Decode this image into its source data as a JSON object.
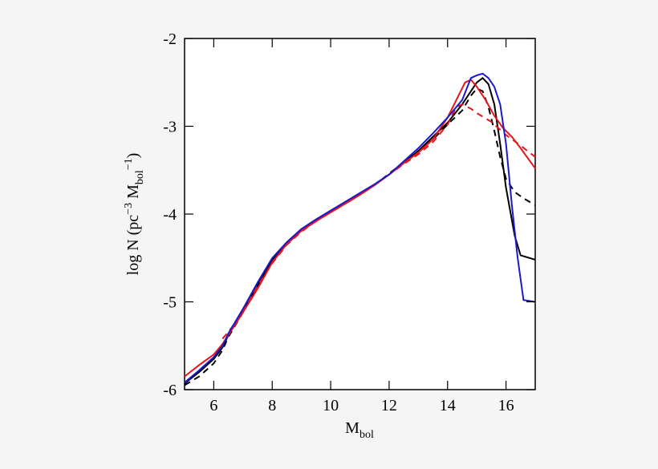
{
  "chart_data": {
    "type": "line",
    "xlabel_parts": [
      "M",
      "bol"
    ],
    "ylabel_parts": [
      "log N (pc",
      "−3",
      " M",
      "bol",
      "−1",
      ")"
    ],
    "xlim": [
      5,
      17
    ],
    "ylim": [
      -6,
      -2
    ],
    "xticks": [
      6,
      8,
      10,
      12,
      14,
      16
    ],
    "yticks": [
      -6,
      -5,
      -4,
      -3,
      -2
    ],
    "series": [
      {
        "color": "#000000",
        "dashed": false,
        "x": [
          5,
          5.5,
          6,
          6.3,
          6.5,
          7,
          7.5,
          8,
          8.5,
          9,
          9.5,
          10,
          10.5,
          11,
          11.5,
          12,
          12.5,
          13,
          13.5,
          14,
          14.5,
          14.8,
          15,
          15.2,
          15.4,
          15.6,
          15.8,
          16,
          16.3,
          16.5,
          17
        ],
        "values": [
          -5.93,
          -5.8,
          -5.65,
          -5.52,
          -5.38,
          -5.1,
          -4.8,
          -4.52,
          -4.33,
          -4.18,
          -4.07,
          -3.97,
          -3.88,
          -3.78,
          -3.67,
          -3.55,
          -3.42,
          -3.28,
          -3.12,
          -2.96,
          -2.75,
          -2.6,
          -2.5,
          -2.45,
          -2.52,
          -2.75,
          -3.2,
          -3.7,
          -4.25,
          -4.47,
          -4.52
        ]
      },
      {
        "color": "#000000",
        "dashed": true,
        "x": [
          5,
          5.5,
          6,
          6.3,
          6.5,
          7,
          7.5,
          8,
          8.5,
          9,
          9.5,
          10,
          10.5,
          11,
          11.5,
          12,
          12.5,
          13,
          13.5,
          14,
          14.5,
          14.8,
          15,
          15.2,
          15.4,
          15.6,
          15.8,
          16,
          16.3,
          16.6,
          17
        ],
        "values": [
          -5.95,
          -5.85,
          -5.7,
          -5.55,
          -5.4,
          -5.12,
          -4.82,
          -4.53,
          -4.34,
          -4.19,
          -4.08,
          -3.98,
          -3.88,
          -3.78,
          -3.67,
          -3.54,
          -3.41,
          -3.28,
          -3.15,
          -2.98,
          -2.82,
          -2.65,
          -2.57,
          -2.6,
          -2.78,
          -3.05,
          -3.35,
          -3.6,
          -3.75,
          -3.82,
          -3.9
        ]
      },
      {
        "color": "#e8141c",
        "dashed": false,
        "x": [
          5,
          5.5,
          6,
          6.3,
          6.5,
          7,
          7.5,
          8,
          8.5,
          9,
          9.5,
          10,
          10.5,
          11,
          11.5,
          12,
          12.5,
          13,
          13.5,
          14,
          14.3,
          14.6,
          14.8,
          15,
          15.3,
          15.6,
          15.9,
          16.2,
          16.5,
          17
        ],
        "values": [
          -5.85,
          -5.72,
          -5.6,
          -5.48,
          -5.38,
          -5.12,
          -4.85,
          -4.55,
          -4.34,
          -4.19,
          -4.08,
          -3.98,
          -3.88,
          -3.78,
          -3.67,
          -3.55,
          -3.42,
          -3.3,
          -3.15,
          -2.9,
          -2.7,
          -2.5,
          -2.47,
          -2.55,
          -2.7,
          -2.88,
          -3.02,
          -3.12,
          -3.25,
          -3.48
        ]
      },
      {
        "color": "#e8141c",
        "dashed": true,
        "x": [
          6.3,
          6.6,
          7,
          7.5,
          8,
          8.5,
          9,
          9.5,
          10,
          10.5,
          11,
          11.5,
          12,
          12.5,
          13,
          13.5,
          14,
          14.3,
          14.5,
          14.8,
          15,
          15.5,
          16,
          16.5,
          17
        ],
        "values": [
          -5.42,
          -5.3,
          -5.1,
          -4.82,
          -4.56,
          -4.35,
          -4.2,
          -4.08,
          -3.98,
          -3.88,
          -3.78,
          -3.67,
          -3.55,
          -3.43,
          -3.32,
          -3.18,
          -2.98,
          -2.78,
          -2.75,
          -2.8,
          -2.85,
          -2.95,
          -3.1,
          -3.22,
          -3.35
        ]
      },
      {
        "color": "#1a1acc",
        "dashed": false,
        "x": [
          5,
          5.5,
          6,
          6.3,
          6.5,
          7,
          7.5,
          8,
          8.5,
          9,
          9.5,
          10,
          10.5,
          11,
          11.5,
          12,
          12.5,
          13,
          13.5,
          14,
          14.5,
          14.8,
          15,
          15.2,
          15.4,
          15.6,
          15.8,
          16,
          16.2,
          16.4,
          16.6,
          17
        ],
        "values": [
          -5.92,
          -5.78,
          -5.63,
          -5.5,
          -5.36,
          -5.08,
          -4.78,
          -4.5,
          -4.32,
          -4.17,
          -4.06,
          -3.96,
          -3.86,
          -3.76,
          -3.66,
          -3.55,
          -3.4,
          -3.25,
          -3.08,
          -2.9,
          -2.7,
          -2.45,
          -2.42,
          -2.4,
          -2.45,
          -2.55,
          -2.75,
          -3.2,
          -3.9,
          -4.5,
          -4.98,
          -5.0
        ]
      }
    ]
  }
}
